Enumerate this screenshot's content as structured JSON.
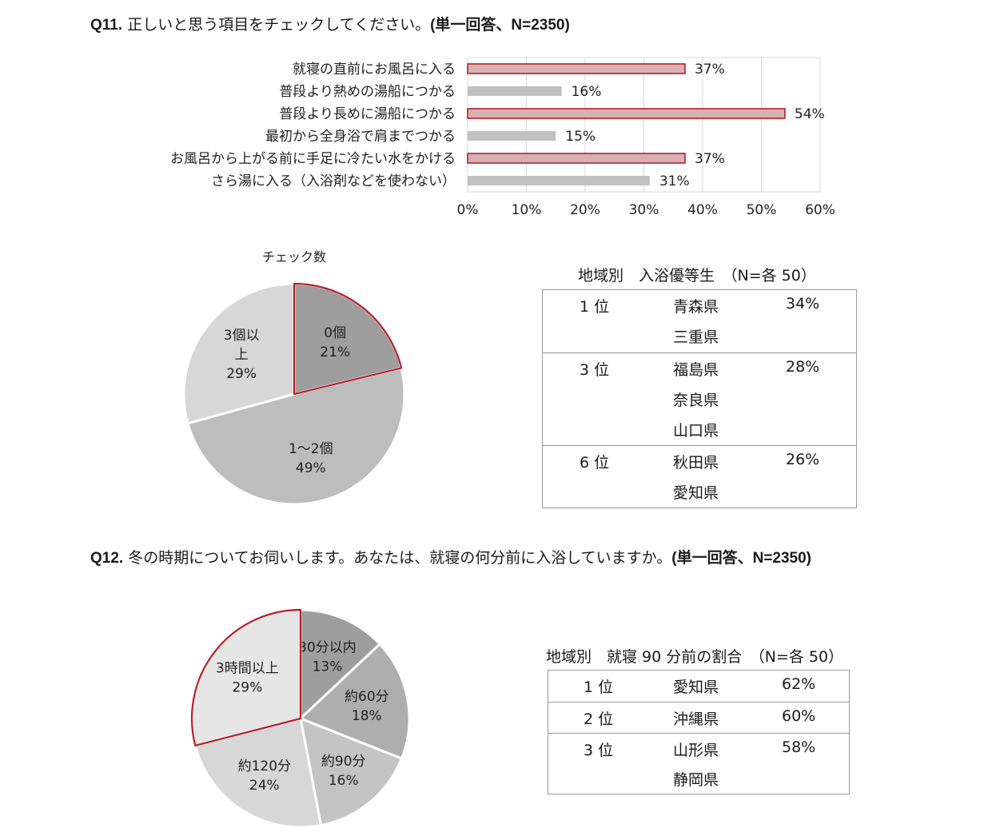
{
  "q11": {
    "number": "Q11.",
    "text": "正しいと思う項目をチェックしてください。",
    "note": "(単一回答、N=2350)"
  },
  "q12": {
    "number": "Q12.",
    "text": "冬の時期についてお伺いします。あなたは、就寝の何分前に入浴していますか。",
    "note": "(単一回答、N=2350)"
  },
  "colors": {
    "accent_red": "#b3202a",
    "bar_highlight_fill": "#d9b0b4",
    "bar_plain_fill": "#c0c0c0",
    "pie_dark": "#9e9e9e",
    "pie_mid": "#bdbdbd",
    "pie_light": "#d7d7d7",
    "pie_lightest": "#e6e6e6"
  },
  "chart_data": [
    {
      "type": "bar",
      "orientation": "horizontal",
      "categories": [
        "就寝の直前にお風呂に入る",
        "普段より熱めの湯船につかる",
        "普段より長めに湯船につかる",
        "最初から全身浴で肩までつかる",
        "お風呂から上がる前に手足に冷たい水をかける",
        "さら湯に入る（入浴剤などを使わない）"
      ],
      "values": [
        37,
        16,
        54,
        15,
        37,
        31
      ],
      "value_labels": [
        "37%",
        "16%",
        "54%",
        "15%",
        "37%",
        "31%"
      ],
      "highlighted": [
        true,
        false,
        true,
        false,
        true,
        false
      ],
      "xlim": [
        0,
        60
      ],
      "xticks": [
        "0%",
        "10%",
        "20%",
        "30%",
        "40%",
        "50%",
        "60%"
      ],
      "grid": true
    },
    {
      "type": "pie",
      "title": "チェック数",
      "slices": [
        {
          "label_lines": [
            "0個",
            "21%"
          ],
          "value": 21,
          "highlighted": true
        },
        {
          "label_lines": [
            "1〜2個",
            "49%"
          ],
          "value": 49,
          "highlighted": false
        },
        {
          "label_lines": [
            "3個以",
            "上",
            "29%"
          ],
          "value": 29,
          "highlighted": false
        }
      ]
    },
    {
      "type": "pie",
      "title": "",
      "slices": [
        {
          "label_lines": [
            "30分以内",
            "13%"
          ],
          "value": 13,
          "highlighted": false
        },
        {
          "label_lines": [
            "約60分",
            "18%"
          ],
          "value": 18,
          "highlighted": false
        },
        {
          "label_lines": [
            "約90分",
            "16%"
          ],
          "value": 16,
          "highlighted": false
        },
        {
          "label_lines": [
            "約120分",
            "24%"
          ],
          "value": 24,
          "highlighted": false
        },
        {
          "label_lines": [
            "3時間以上",
            "29%"
          ],
          "value": 29,
          "highlighted": true
        }
      ]
    }
  ],
  "table1": {
    "caption": "地域別　入浴優等生　（N=各 50）",
    "groups": [
      {
        "rank": "1 位",
        "prefectures": [
          "青森県",
          "三重県"
        ],
        "value": "34%"
      },
      {
        "rank": "3 位",
        "prefectures": [
          "福島県",
          "奈良県",
          "山口県"
        ],
        "value": "28%"
      },
      {
        "rank": "6 位",
        "prefectures": [
          "秋田県",
          "愛知県"
        ],
        "value": "26%"
      }
    ]
  },
  "table2": {
    "caption": "地域別　就寝 90 分前の割合　（N=各 50）",
    "groups": [
      {
        "rank": "1 位",
        "prefectures": [
          "愛知県"
        ],
        "value": "62%"
      },
      {
        "rank": "2 位",
        "prefectures": [
          "沖縄県"
        ],
        "value": "60%"
      },
      {
        "rank": "3 位",
        "prefectures": [
          "山形県",
          "静岡県"
        ],
        "value": "58%"
      }
    ]
  }
}
